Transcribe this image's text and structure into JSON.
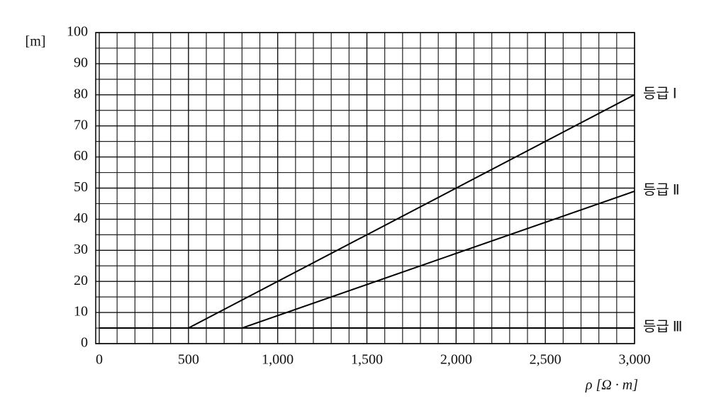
{
  "chart_data": {
    "type": "line",
    "y_label": "[m]",
    "x_label": "ρ [Ω · m]",
    "xlim": [
      0,
      3000
    ],
    "ylim": [
      0,
      100
    ],
    "xticks": [
      0,
      500,
      {
        "value": 1000,
        "label": "1,000"
      },
      {
        "value": 1500,
        "label": "1,500"
      },
      {
        "value": 2000,
        "label": "2,000"
      },
      {
        "value": 2500,
        "label": "2,500"
      },
      {
        "value": 3000,
        "label": "3,000"
      }
    ],
    "yticks": [
      0,
      10,
      20,
      30,
      40,
      50,
      60,
      70,
      80,
      90,
      100
    ],
    "grid": true,
    "series": [
      {
        "name": "등급 Ⅰ",
        "color": "#000000",
        "x": [
          500,
          3000
        ],
        "values": [
          5,
          80
        ]
      },
      {
        "name": "등급 Ⅱ",
        "color": "#000000",
        "x": [
          800,
          3000
        ],
        "values": [
          5,
          49
        ]
      },
      {
        "name": "등급 Ⅲ",
        "color": "#000000",
        "x": [
          0,
          3000
        ],
        "values": [
          5,
          5
        ]
      }
    ]
  }
}
